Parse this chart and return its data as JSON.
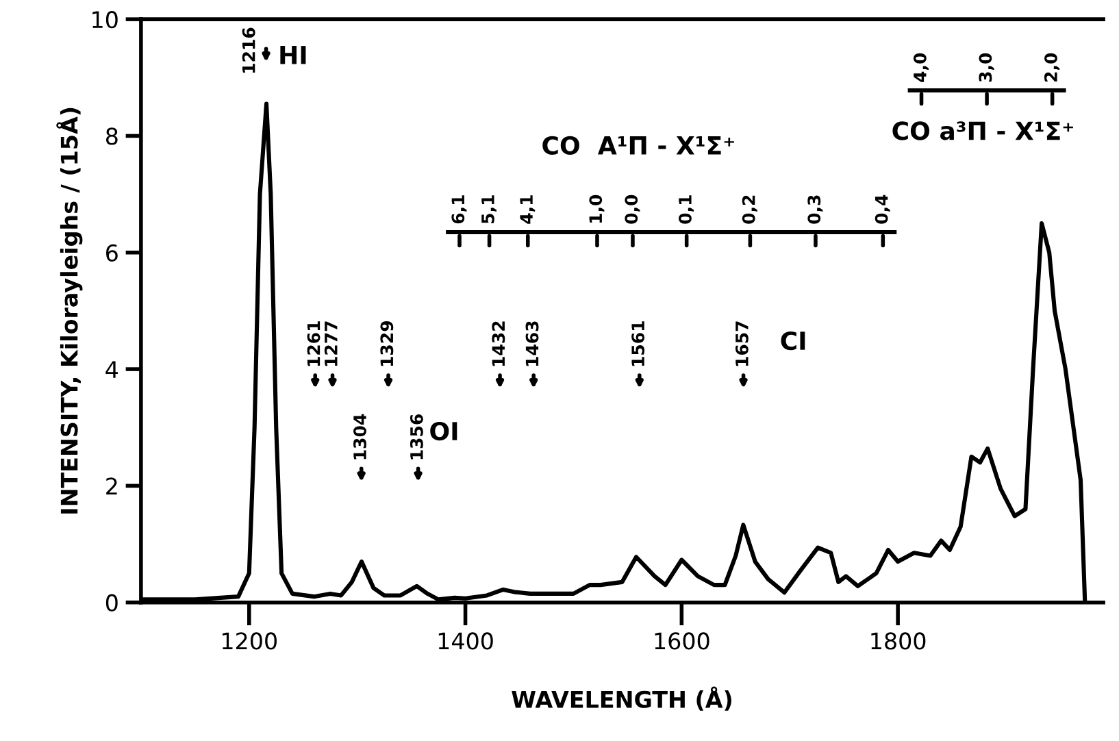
{
  "chart_data": {
    "type": "line",
    "xlabel": "WAVELENGTH (Å)",
    "ylabel": "INTENSITY, Kilorayleighs / (15Å)",
    "xlim": [
      1100,
      1990
    ],
    "ylim": [
      0,
      10
    ],
    "xticks": [
      1200,
      1400,
      1600,
      1800
    ],
    "yticks": [
      0,
      2,
      4,
      6,
      8,
      10
    ],
    "grid": false,
    "legend": false,
    "marker": "none",
    "line_style": "solid",
    "series": [
      {
        "color": "#000000",
        "x": [
          1100,
          1150,
          1190,
          1200,
          1205,
          1210,
          1216,
          1220,
          1225,
          1230,
          1240,
          1260,
          1275,
          1285,
          1295,
          1304,
          1315,
          1325,
          1340,
          1355,
          1365,
          1375,
          1390,
          1400,
          1420,
          1435,
          1445,
          1460,
          1500,
          1515,
          1525,
          1545,
          1558,
          1575,
          1585,
          1600,
          1615,
          1630,
          1640,
          1650,
          1657,
          1668,
          1680,
          1695,
          1710,
          1726,
          1738,
          1745,
          1752,
          1763,
          1780,
          1791,
          1800,
          1815,
          1830,
          1840,
          1848,
          1858,
          1868,
          1876,
          1883,
          1895,
          1908,
          1918,
          1925,
          1933,
          1940,
          1945,
          1955,
          1969,
          1973
        ],
        "values": [
          0.05,
          0.05,
          0.1,
          0.5,
          3,
          7,
          8.55,
          7,
          3,
          0.5,
          0.15,
          0.1,
          0.15,
          0.12,
          0.35,
          0.7,
          0.25,
          0.12,
          0.12,
          0.28,
          0.15,
          0.05,
          0.08,
          0.07,
          0.12,
          0.22,
          0.18,
          0.15,
          0.15,
          0.3,
          0.3,
          0.35,
          0.78,
          0.45,
          0.3,
          0.73,
          0.45,
          0.3,
          0.3,
          0.8,
          1.33,
          0.7,
          0.4,
          0.17,
          0.55,
          0.94,
          0.85,
          0.35,
          0.45,
          0.28,
          0.5,
          0.9,
          0.7,
          0.85,
          0.8,
          1.06,
          0.9,
          1.3,
          2.5,
          2.4,
          2.64,
          1.95,
          1.48,
          1.6,
          4.0,
          6.5,
          6.0,
          5.0,
          4.0,
          2.1,
          0.0
        ]
      }
    ],
    "annotations": [
      "1216",
      "1261",
      "1277",
      "1304",
      "1329",
      "1356",
      "1432",
      "1463",
      "1561",
      "1657",
      "HI",
      "OI",
      "CI",
      "CO  A¹Π - X¹Σ⁺",
      "CO a³Π - X¹Σ⁺",
      "6,1",
      "5,1",
      "4,1",
      "1,0",
      "0,0",
      "0,1",
      "0,2",
      "0,3",
      "0,4",
      "4,0",
      "3,0",
      "2,0"
    ]
  }
}
